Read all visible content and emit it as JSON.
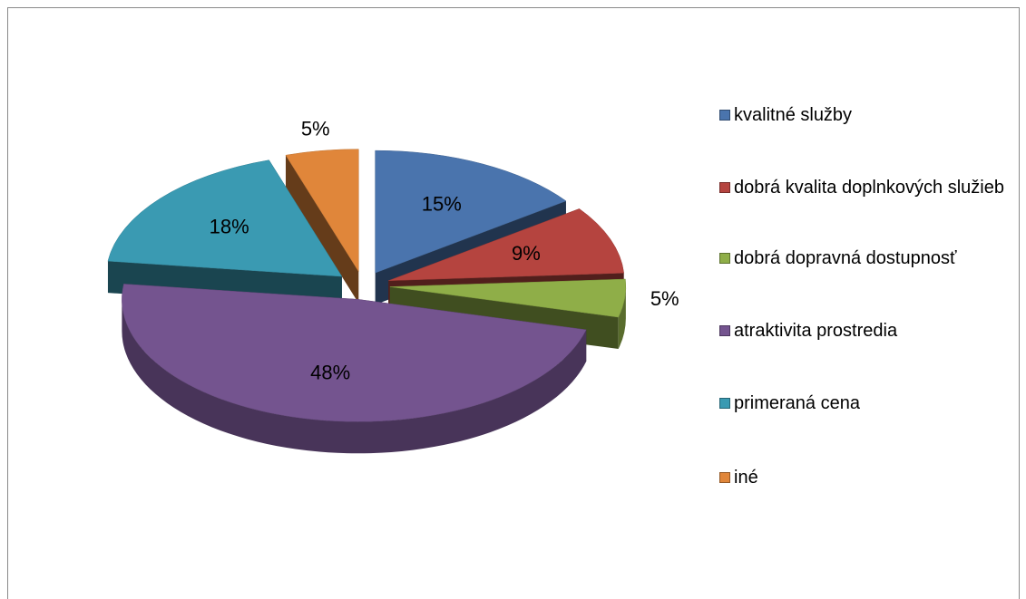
{
  "chart_data": {
    "type": "pie",
    "categories": [
      "kvalitné služby",
      "dobrá kvalita doplnkových služieb",
      "dobrá dopravná dostupnosť",
      "atraktivita prostredia",
      "primeraná cena",
      "iné"
    ],
    "values": [
      15,
      9,
      5,
      48,
      18,
      5
    ],
    "value_labels": [
      "15%",
      "9%",
      "5%",
      "48%",
      "18%",
      "5%"
    ],
    "colors": [
      "#4a74ad",
      "#b5443f",
      "#8fae48",
      "#74548f",
      "#3a9ab2",
      "#e0863a"
    ],
    "legend": "right"
  }
}
